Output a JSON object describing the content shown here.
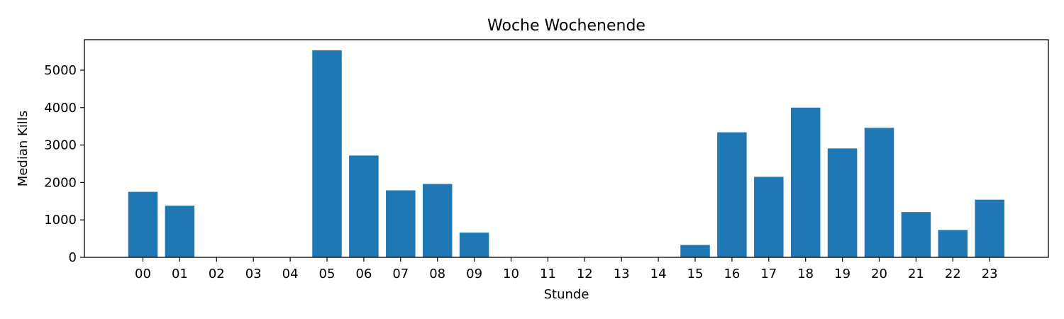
{
  "chart_data": {
    "type": "bar",
    "title": "Woche Wochenende",
    "xlabel": "Stunde",
    "ylabel": "Median Kills",
    "categories": [
      "00",
      "01",
      "02",
      "03",
      "04",
      "05",
      "06",
      "07",
      "08",
      "09",
      "10",
      "11",
      "12",
      "13",
      "14",
      "15",
      "16",
      "17",
      "18",
      "19",
      "20",
      "21",
      "22",
      "23"
    ],
    "values": [
      1750,
      1380,
      0,
      0,
      0,
      5530,
      2720,
      1790,
      1960,
      660,
      0,
      0,
      0,
      0,
      0,
      330,
      3340,
      2150,
      4000,
      2910,
      3460,
      1210,
      730,
      1540
    ],
    "ylim": [
      0,
      5800
    ],
    "yticks": [
      0,
      1000,
      2000,
      3000,
      4000,
      5000
    ],
    "grid": false,
    "legend": "none",
    "colors": {
      "bar": "#1f77b4",
      "axis": "#000000",
      "background": "#ffffff"
    }
  }
}
